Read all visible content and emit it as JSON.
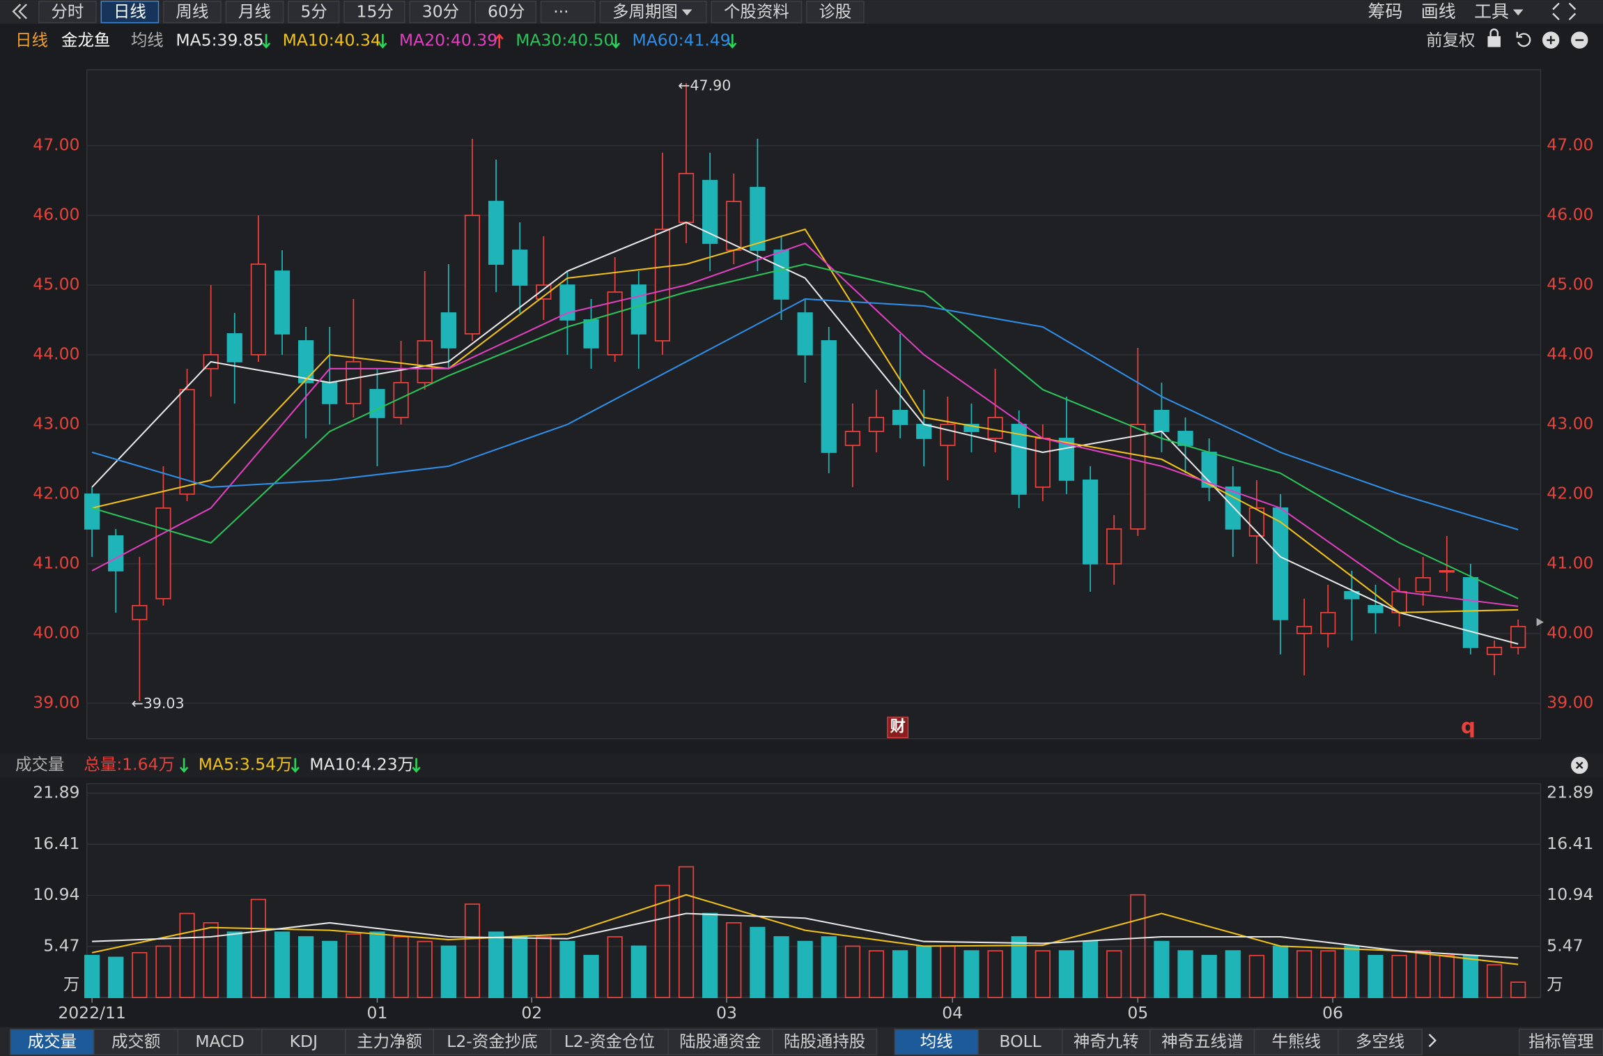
{
  "toolbar": {
    "left": [
      {
        "label": "分时"
      },
      {
        "label": "日线"
      },
      {
        "label": "周线"
      },
      {
        "label": "月线"
      },
      {
        "label": "5分"
      },
      {
        "label": "15分"
      },
      {
        "label": "30分"
      },
      {
        "label": "60分"
      },
      {
        "label": "···"
      },
      {
        "label": "多周期图",
        "dropdown": true
      },
      {
        "label": "个股资料"
      },
      {
        "label": "诊股"
      }
    ],
    "selected": 1,
    "right": [
      {
        "label": "筹码"
      },
      {
        "label": "画线"
      },
      {
        "label": "工具",
        "dropdown": true
      }
    ]
  },
  "header": {
    "period": "日线",
    "stock": "金龙鱼",
    "ma_label": "均线",
    "adjust": "前复权"
  },
  "chart_data": {
    "type": "candlestick",
    "up_color": "#e8413b",
    "down_color": "#1fb5b8",
    "xlim": [
      0,
      60
    ],
    "xticks": [
      {
        "value": 0,
        "label": "2022/11"
      },
      {
        "value": 12,
        "label": "01"
      },
      {
        "value": 18.5,
        "label": "02"
      },
      {
        "value": 26.7,
        "label": "03"
      },
      {
        "value": 36.2,
        "label": "04"
      },
      {
        "value": 44,
        "label": "05"
      },
      {
        "value": 52.2,
        "label": "06"
      }
    ],
    "ylim": [
      38.49,
      48.09
    ],
    "yticks": [
      {
        "value": 39,
        "label": "39.00"
      },
      {
        "value": 40,
        "label": "40.00"
      },
      {
        "value": 41,
        "label": "41.00"
      },
      {
        "value": 42,
        "label": "42.00"
      },
      {
        "value": 43,
        "label": "43.00"
      },
      {
        "value": 44,
        "label": "44.00"
      },
      {
        "value": 45,
        "label": "45.00"
      },
      {
        "value": 46,
        "label": "46.00"
      },
      {
        "value": 47,
        "label": "47.00"
      }
    ],
    "grid": true,
    "open": [
      42.0,
      41.4,
      40.2,
      40.5,
      42.0,
      43.8,
      44.3,
      44.0,
      45.2,
      44.2,
      43.6,
      43.3,
      43.5,
      43.1,
      43.6,
      44.6,
      44.3,
      46.2,
      45.5,
      44.8,
      45.0,
      44.5,
      44.0,
      45.0,
      44.2,
      45.9,
      46.5,
      45.5,
      46.4,
      45.5,
      44.6,
      44.2,
      42.7,
      42.9,
      43.2,
      43.0,
      42.7,
      43.0,
      42.8,
      43.0,
      42.1,
      42.8,
      42.2,
      41.0,
      41.5,
      43.2,
      42.9,
      42.6,
      42.1,
      41.4,
      41.8,
      40.0,
      40.0,
      40.6,
      40.4,
      40.3,
      40.6,
      40.9,
      40.8,
      39.7,
      39.8
    ],
    "high": [
      42.1,
      41.5,
      41.1,
      42.4,
      43.8,
      45.0,
      44.6,
      46.0,
      45.5,
      44.4,
      44.4,
      44.8,
      43.8,
      44.2,
      45.2,
      45.3,
      47.1,
      46.8,
      45.9,
      45.7,
      45.2,
      44.8,
      45.4,
      45.2,
      46.9,
      47.9,
      46.9,
      46.6,
      47.1,
      45.7,
      44.8,
      44.4,
      43.3,
      43.5,
      44.3,
      43.5,
      43.4,
      43.3,
      43.8,
      43.2,
      43.0,
      43.4,
      42.4,
      41.7,
      44.1,
      43.6,
      43.1,
      42.8,
      42.4,
      42.2,
      42.0,
      40.5,
      40.7,
      40.9,
      40.7,
      40.8,
      41.1,
      41.4,
      41.0,
      39.9,
      40.2
    ],
    "low": [
      41.1,
      40.3,
      39.03,
      40.4,
      41.9,
      43.4,
      43.3,
      43.9,
      44.0,
      42.8,
      43.0,
      43.1,
      42.4,
      43.0,
      43.5,
      43.8,
      44.2,
      44.9,
      44.6,
      44.5,
      44.0,
      43.8,
      43.9,
      43.8,
      44.0,
      45.6,
      45.2,
      45.3,
      45.2,
      44.5,
      43.6,
      42.3,
      42.1,
      42.6,
      42.8,
      42.4,
      42.2,
      42.6,
      42.6,
      41.8,
      41.9,
      42.0,
      40.6,
      40.7,
      41.4,
      42.6,
      42.3,
      41.9,
      41.1,
      41.0,
      39.7,
      39.4,
      39.8,
      39.9,
      40.0,
      40.1,
      40.4,
      40.6,
      39.7,
      39.4,
      39.7
    ],
    "close": [
      41.5,
      40.9,
      40.4,
      41.8,
      43.5,
      44.0,
      43.9,
      45.3,
      44.3,
      43.6,
      43.3,
      43.9,
      43.1,
      43.6,
      44.2,
      44.1,
      46.0,
      45.3,
      45.0,
      45.0,
      44.5,
      44.1,
      44.9,
      44.3,
      45.8,
      46.6,
      45.6,
      46.2,
      45.5,
      44.8,
      44.0,
      42.6,
      42.9,
      43.1,
      43.0,
      42.8,
      43.0,
      42.9,
      43.1,
      42.0,
      42.8,
      42.2,
      41.0,
      41.5,
      43.0,
      42.9,
      42.7,
      42.1,
      41.5,
      41.8,
      40.2,
      40.1,
      40.3,
      40.5,
      40.3,
      40.6,
      40.8,
      40.9,
      39.8,
      39.8,
      40.1
    ],
    "series": [
      {
        "name": "MA5:39.85",
        "color": "#e8e8e8",
        "trend": "down",
        "x": [
          0,
          5,
          10,
          15,
          20,
          25,
          30,
          35,
          40,
          45,
          50,
          55,
          60
        ],
        "values": [
          42.1,
          43.9,
          43.6,
          43.9,
          45.2,
          45.9,
          45.1,
          43.0,
          42.6,
          42.9,
          41.1,
          40.3,
          39.85
        ]
      },
      {
        "name": "MA10:40.34",
        "color": "#f2c218",
        "trend": "down",
        "x": [
          0,
          5,
          10,
          15,
          20,
          25,
          30,
          35,
          40,
          45,
          50,
          55,
          60
        ],
        "values": [
          41.8,
          42.2,
          44.0,
          43.8,
          45.1,
          45.3,
          45.8,
          43.1,
          42.8,
          42.5,
          41.6,
          40.3,
          40.34
        ]
      },
      {
        "name": "MA20:40.39",
        "color": "#e040c0",
        "trend": "up",
        "x": [
          0,
          5,
          10,
          15,
          20,
          25,
          30,
          35,
          40,
          45,
          50,
          55,
          60
        ],
        "values": [
          40.9,
          41.8,
          43.8,
          43.8,
          44.6,
          45.0,
          45.6,
          44.0,
          42.8,
          42.4,
          41.8,
          40.6,
          40.39
        ]
      },
      {
        "name": "MA30:40.50",
        "color": "#2cc45a",
        "trend": "down",
        "x": [
          0,
          5,
          10,
          15,
          20,
          25,
          30,
          35,
          40,
          45,
          50,
          55,
          60
        ],
        "values": [
          41.8,
          41.3,
          42.9,
          43.7,
          44.4,
          44.9,
          45.3,
          44.9,
          43.5,
          42.8,
          42.3,
          41.3,
          40.5
        ]
      },
      {
        "name": "MA60:41.49",
        "color": "#2f8fe8",
        "trend": "down",
        "x": [
          0,
          5,
          10,
          15,
          20,
          25,
          30,
          35,
          40,
          45,
          50,
          55,
          60
        ],
        "values": [
          42.6,
          42.1,
          42.2,
          42.4,
          43.0,
          43.9,
          44.8,
          44.7,
          44.4,
          43.4,
          42.6,
          42.0,
          41.49
        ]
      }
    ],
    "annotations": [
      {
        "text": "←47.90",
        "x": 25,
        "value": 47.9
      },
      {
        "text": "←39.03",
        "x": 2,
        "value": 39.03
      }
    ],
    "badges": [
      {
        "text": "财",
        "x": 33.9
      },
      {
        "text": "q",
        "x": 57.9
      }
    ]
  },
  "volume_data": {
    "type": "bar",
    "title": "成交量",
    "ylim": [
      0,
      22.9
    ],
    "yticks": [
      {
        "value": 0,
        "label": "万"
      },
      5.47,
      10.94,
      16.41,
      21.89
    ],
    "values": [
      4.5,
      4.3,
      4.8,
      5.5,
      9,
      8,
      7,
      10.5,
      7,
      6.5,
      6,
      6.8,
      7,
      6.5,
      6,
      5.5,
      10,
      7,
      6.5,
      6.5,
      6,
      4.5,
      6.5,
      5.5,
      12,
      14,
      9,
      8,
      7.5,
      6.5,
      6,
      6.5,
      5.5,
      5,
      5,
      5.5,
      5.5,
      5,
      5,
      6.5,
      5,
      5,
      6,
      5,
      11,
      6,
      5,
      4.5,
      5,
      4.5,
      5.5,
      5,
      5,
      5.5,
      4.5,
      4.5,
      5,
      4.5,
      4.5,
      3.5,
      1.64
    ],
    "legend": [
      {
        "name": "总量:1.64万",
        "color": "#e8413b",
        "trend": "down"
      },
      {
        "name": "MA5:3.54万",
        "color": "#f2c218",
        "trend": "down"
      },
      {
        "name": "MA10:4.23万",
        "color": "#e8e8e8",
        "trend": "down"
      }
    ],
    "series": [
      {
        "name": "MA5",
        "color": "#f2c218",
        "x": [
          0,
          5,
          10,
          15,
          20,
          25,
          30,
          35,
          40,
          45,
          50,
          55,
          60
        ],
        "values": [
          4.8,
          7.5,
          7.2,
          6.2,
          6.8,
          11,
          7.2,
          5.5,
          5.6,
          9,
          5.5,
          5,
          3.54
        ]
      },
      {
        "name": "MA10",
        "color": "#e8e8e8",
        "x": [
          0,
          5,
          10,
          15,
          20,
          25,
          30,
          35,
          40,
          45,
          50,
          55,
          60
        ],
        "values": [
          6,
          6.5,
          8,
          6.5,
          6.3,
          9,
          8.5,
          6,
          5.8,
          6.5,
          6.5,
          5,
          4.23
        ]
      }
    ]
  },
  "tabs": {
    "left": [
      "成交量",
      "成交额",
      "MACD",
      "KDJ",
      "主力净额",
      "L2-资金抄底",
      "L2-资金仓位",
      "陆股通资金",
      "陆股通持股"
    ],
    "left_selected": 0,
    "right": [
      "均线",
      "BOLL",
      "神奇九转",
      "神奇五线谱",
      "牛熊线",
      "多空线"
    ],
    "right_selected": 0,
    "manage": "指标管理"
  }
}
